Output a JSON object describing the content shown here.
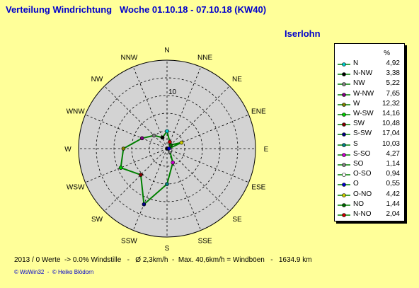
{
  "header": {
    "title": "Verteilung Windrichtung   Woche 01.10.18 - 07.10.18 (KW40)",
    "station": "Iserlohn"
  },
  "chart_data": {
    "type": "radar",
    "directions": [
      "N",
      "NNE",
      "NE",
      "ENE",
      "E",
      "ESE",
      "SE",
      "SSE",
      "S",
      "SSW",
      "SW",
      "WSW",
      "W",
      "WNW",
      "NW",
      "NNW"
    ],
    "ring_label": "10",
    "unit": "%",
    "rmax": 25,
    "ring_step": 5,
    "line_color": "#008000",
    "disc_color": "#d3d3d3",
    "series": [
      {
        "name": "N",
        "value": 4.92,
        "color": "#00cccc",
        "angle": 0
      },
      {
        "name": "N-NW",
        "value": 3.38,
        "color": "#000000",
        "angle": 337.5
      },
      {
        "name": "NW",
        "value": 5.22,
        "color": "#808080",
        "angle": 315
      },
      {
        "name": "W-NW",
        "value": 7.65,
        "color": "#800080",
        "angle": 292.5
      },
      {
        "name": "W",
        "value": 12.32,
        "color": "#808000",
        "angle": 270
      },
      {
        "name": "W-SW",
        "value": 14.16,
        "color": "#00cc00",
        "angle": 247.5
      },
      {
        "name": "SW",
        "value": 10.48,
        "color": "#800000",
        "angle": 225
      },
      {
        "name": "S-SW",
        "value": 17.04,
        "color": "#000080",
        "angle": 202.5
      },
      {
        "name": "S",
        "value": 10.03,
        "color": "#008080",
        "angle": 180
      },
      {
        "name": "S-SO",
        "value": 4.27,
        "color": "#cc00cc",
        "angle": 157.5
      },
      {
        "name": "SO",
        "value": 1.14,
        "color": "#808080",
        "angle": 135
      },
      {
        "name": "O-SO",
        "value": 0.94,
        "color": "#ffffff",
        "angle": 112.5
      },
      {
        "name": "O",
        "value": 0.55,
        "color": "#0000cc",
        "angle": 90
      },
      {
        "name": "O-NO",
        "value": 4.42,
        "color": "#cccc00",
        "angle": 67.5
      },
      {
        "name": "NO",
        "value": 1.44,
        "color": "#006600",
        "angle": 45
      },
      {
        "name": "N-NO",
        "value": 2.04,
        "color": "#cc0000",
        "angle": 22.5
      }
    ]
  },
  "footer": {
    "stats": "2013 / 0 Werte  -> 0.0% Windstille   -   Ø 2,3km/h  -  Max. 40,6km/h = Windböen   -   1634.9 km",
    "credit": "© WsWin32  -  © Heiko Blödorn"
  }
}
